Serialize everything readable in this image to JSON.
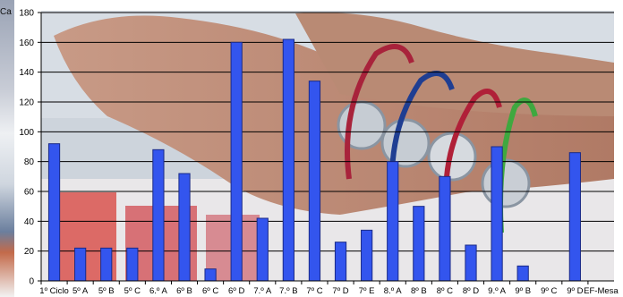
{
  "page": {
    "corner_label": "Ca"
  },
  "chart_data": {
    "type": "bar",
    "categories": [
      "1º Ciclo",
      "5º A",
      "5º B",
      "5º C",
      "6.º A",
      "6º B",
      "6º C",
      "6º D",
      "7.º A",
      "7.º B",
      "7º C",
      "7º D",
      "7º E",
      "8.º A",
      "8º B",
      "8º C",
      "8º D",
      "9.º A",
      "9º B",
      "9º C",
      "9º D",
      "EF-Mesa"
    ],
    "series": [
      {
        "values": [
          92,
          22,
          22,
          22,
          88,
          72,
          8,
          160,
          42,
          162,
          134,
          26,
          34,
          80,
          50,
          70,
          24,
          90,
          10,
          0,
          86,
          0
        ]
      }
    ],
    "ylim": [
      0,
      180
    ],
    "yticks": [
      0,
      20,
      40,
      60,
      80,
      100,
      120,
      140,
      160,
      180
    ],
    "grid": true,
    "bar_color": "#3355ee",
    "bar_edge_color": "#1a2a88",
    "gridline_color": "#000000",
    "background": "photo of a wrist wearing bracelets with round metal tags"
  }
}
